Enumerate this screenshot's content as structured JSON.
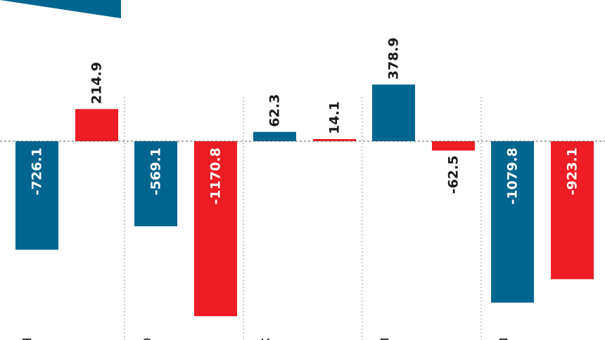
{
  "chart_data": {
    "type": "bar",
    "categories": [
      "Т",
      "С",
      "К",
      "П",
      "П"
    ],
    "series": [
      {
        "values": [
          -726.1,
          -569.1,
          62.3,
          378.9,
          -1079.8
        ]
      },
      {
        "values": [
          214.9,
          -1170.8,
          14.1,
          -62.5,
          -923.1
        ]
      }
    ],
    "data_labels": [
      [
        "-726.1",
        "-569.1",
        "62.3",
        "378.9",
        "-1079.8"
      ],
      [
        "214.9",
        "-1170.8",
        "14.1",
        "-62.5",
        "-923.1"
      ]
    ],
    "colors": [
      "#00658f",
      "#ee1c25"
    ],
    "baseline": 0,
    "ylim": [
      -1300,
      400
    ],
    "baseline_style": "dashed",
    "category_separators": "dotted",
    "legend": "none",
    "grid": false
  }
}
